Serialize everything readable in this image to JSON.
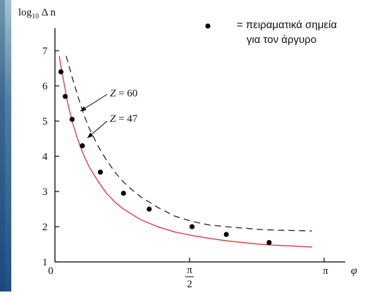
{
  "chart_data": {
    "type": "line",
    "y_axis_label": {
      "base": "log",
      "sub": "10",
      "rest": " Δ n"
    },
    "x_axis_label": "φ",
    "yticks": [
      1,
      2,
      3,
      4,
      5,
      6,
      7
    ],
    "xticks": [
      {
        "value": 0,
        "label": "0"
      },
      {
        "value": 1.5708,
        "label": "π/2",
        "num": "π",
        "den": "2"
      },
      {
        "value": 3.1416,
        "label": "π"
      }
    ],
    "xlim": [
      0,
      3.4
    ],
    "ylim": [
      1,
      7.5
    ],
    "legend": {
      "marker": "•",
      "line1": "= πειραματικά σημεία",
      "line2": "για τον άργυρο"
    },
    "series": [
      {
        "name": "Z = 60",
        "style": "dashed",
        "color": "#222222",
        "x": [
          0.13,
          0.16,
          0.2,
          0.25,
          0.3,
          0.35,
          0.4,
          0.5,
          0.6,
          0.7,
          0.8,
          0.9,
          1.0,
          1.2,
          1.4,
          1.6,
          1.8,
          2.0,
          2.2,
          2.4,
          2.6,
          2.8,
          3.0
        ],
        "y": [
          6.85,
          6.6,
          6.25,
          5.85,
          5.45,
          5.1,
          4.8,
          4.3,
          3.9,
          3.55,
          3.27,
          3.05,
          2.85,
          2.55,
          2.3,
          2.15,
          2.05,
          2.0,
          1.96,
          1.92,
          1.9,
          1.89,
          1.88
        ]
      },
      {
        "name": "Z = 47",
        "style": "solid",
        "color": "#e0202a",
        "x": [
          0.05,
          0.07,
          0.1,
          0.15,
          0.2,
          0.25,
          0.3,
          0.35,
          0.4,
          0.5,
          0.6,
          0.7,
          0.8,
          0.9,
          1.0,
          1.2,
          1.4,
          1.6,
          1.8,
          2.0,
          2.2,
          2.4,
          2.6,
          2.8,
          3.0
        ],
        "y": [
          6.85,
          6.55,
          6.15,
          5.5,
          5.0,
          4.6,
          4.25,
          3.95,
          3.7,
          3.3,
          2.95,
          2.7,
          2.5,
          2.35,
          2.2,
          2.0,
          1.85,
          1.75,
          1.67,
          1.6,
          1.55,
          1.5,
          1.47,
          1.45,
          1.42
        ]
      },
      {
        "name": "πειραματικά σημεία για τον άργυρο",
        "style": "points",
        "color": "#000000",
        "x": [
          0.07,
          0.12,
          0.2,
          0.32,
          0.53,
          0.8,
          1.1,
          1.6,
          2.0,
          2.5
        ],
        "y": [
          6.4,
          5.7,
          5.05,
          4.3,
          3.55,
          2.95,
          2.5,
          2.0,
          1.78,
          1.55
        ]
      }
    ],
    "annotations": [
      {
        "text_italic": "Z",
        "text_rest": " = 60"
      },
      {
        "text_italic": "Z",
        "text_rest": " = 47"
      }
    ],
    "grid": false
  }
}
